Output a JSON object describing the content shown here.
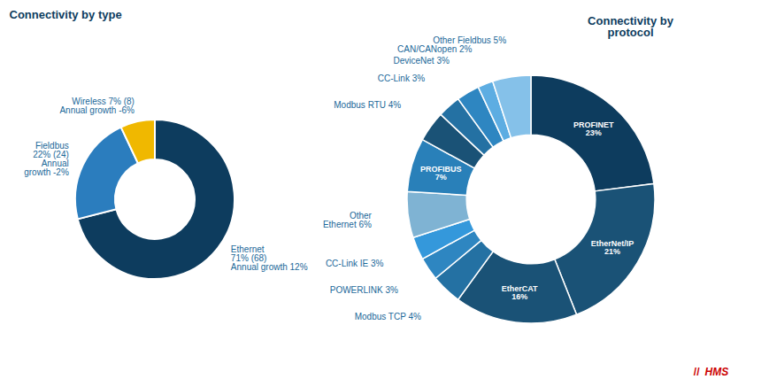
{
  "chart_data": [
    {
      "type": "pie",
      "title": "Connectivity by type",
      "values": [
        71,
        22,
        7
      ],
      "value_labels": [
        "Ethernet\n71% (68)\nAnnual growth 12%",
        "Fieldbus\n22% (24)\nAnnual\ngrowth -2%",
        "Wireless 7% (8)\nAnnual growth -6%"
      ],
      "colors": [
        "#0d3c5e",
        "#2b7dbe",
        "#f0b800"
      ],
      "data_labels": true
    },
    {
      "type": "pie",
      "title": "Connectivity by\nprotocol",
      "values": [
        23,
        21,
        16,
        4,
        3,
        3,
        6,
        7,
        4,
        3,
        3,
        2,
        5
      ],
      "value_labels": [
        "PROFINET\n23%",
        "EtherNet/IP\n21%",
        "EtherCAT\n16%",
        "Modbus TCP 4%",
        "POWERLINK 3%",
        "CC-Link IE 3%",
        "Other\nEthernet 6%",
        "PROFIBUS\n7%",
        "Modbus RTU 4%",
        "CC-Link 3%",
        "DeviceNet 3%",
        "CAN/CANopen 2%",
        "Other Fieldbus 5%"
      ],
      "colors": [
        "#0d3c5e",
        "#1a5276",
        "#1a5276",
        "#2471a3",
        "#2e86c1",
        "#3498db",
        "#7fb3d3",
        "#2980b9",
        "#1a5276",
        "#2471a3",
        "#2e86c1",
        "#5dade2",
        "#85c1e9"
      ],
      "data_labels": true,
      "annotations": [
        {
          "text": "//",
          "color": "#cc0000"
        },
        {
          "text": "HMS",
          "color": "#cc0000"
        }
      ]
    }
  ]
}
